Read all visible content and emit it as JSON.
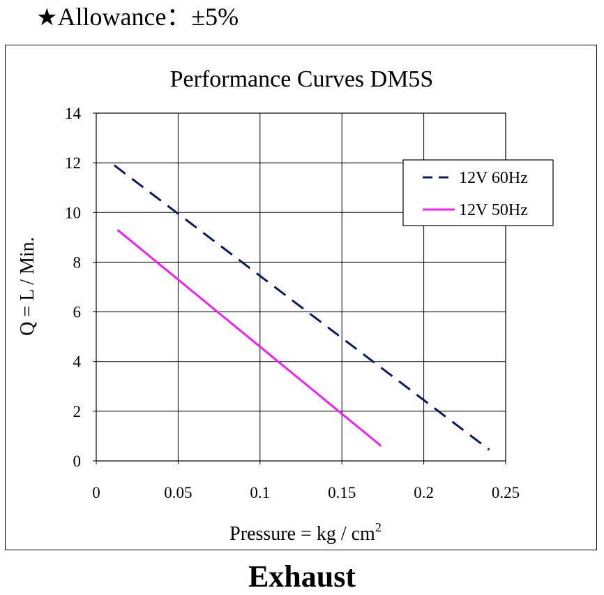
{
  "header": {
    "star_icon": "star-icon",
    "text": "Allowance：±5%"
  },
  "footer": {
    "label": "Exhaust"
  },
  "chart_data": {
    "type": "line",
    "title": "Performance  Curves  DM5S",
    "xlabel": "Pressure = kg / cm",
    "xlabel_superscript": "2",
    "ylabel": "Q = L / Min.",
    "xlim": [
      0,
      0.25
    ],
    "ylim": [
      0,
      14
    ],
    "xticks": [
      "0",
      "0.05",
      "0.1",
      "0.15",
      "0.2",
      "0.25"
    ],
    "yticks": [
      "0",
      "2",
      "4",
      "6",
      "8",
      "10",
      "12",
      "14"
    ],
    "grid": true,
    "legend_position": "top-right",
    "series": [
      {
        "name": "12V 60Hz",
        "color": "#0d1a5c",
        "style": "dashed",
        "x": [
          0.011,
          0.24
        ],
        "y": [
          11.9,
          0.45
        ]
      },
      {
        "name": "12V 50Hz",
        "color": "#ee22ee",
        "style": "solid",
        "x": [
          0.013,
          0.174
        ],
        "y": [
          9.3,
          0.6
        ]
      }
    ]
  }
}
